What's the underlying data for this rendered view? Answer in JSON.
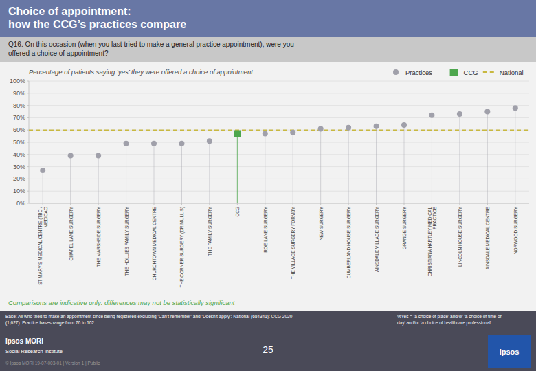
{
  "chart_data": {
    "type": "scatter",
    "title": "Choice of appointment:\nhow the CCG’s practices compare",
    "question": "Q16. On this occasion (when you last tried to make a general practice appointment), were you\noffered a choice of appointment?",
    "subtitle": "Percentage of patients saying ‘yes’ they were offered a choice of appointment",
    "categories": [
      "ST MARY'S MEDICAL CENTRE (TBC /\nMEDICAO",
      "CHAPEL LANE SURGERY",
      "THE MARSHSIDE SURGERY",
      "THE HOLLIES FAMILY SURGERY",
      "CHURCHTOWN MEDICAL CENTRE",
      "THE CORNER SURGERY (DR MULLIS)",
      "THE FAMILY SURGERY",
      "CCG",
      "ROE LANE SURGERY",
      "THE VILLAGE SURGERY FORMBY",
      "NEW SURGERY",
      "CUMBERLAND HOUSE SURGERY",
      "AINSDALE VILLAGE SURGERY",
      "GRANGE SURGERY",
      "CHRISTIANA HARTLEY MEDICAL\nPRACTICE",
      "LINCOLN HOUSE SURGERY",
      "AINSDALE MEDICAL CENTRE",
      "NORWOOD SURGERY"
    ],
    "series": [
      {
        "name": "Practices",
        "color": "#a0a0aa",
        "marker": "circle",
        "values": [
          27,
          39,
          39,
          49,
          49,
          49,
          51,
          null,
          57,
          58,
          61,
          62,
          63,
          64,
          72,
          73,
          75,
          78
        ]
      },
      {
        "name": "CCG",
        "color": "#4da64d",
        "marker": "square",
        "values": [
          null,
          null,
          null,
          null,
          null,
          null,
          null,
          57,
          null,
          null,
          null,
          null,
          null,
          null,
          null,
          null,
          null,
          null
        ]
      }
    ],
    "reference_lines": [
      {
        "name": "National",
        "value": 60,
        "color": "#c8b840",
        "line_style": "dashed"
      }
    ],
    "ylim": [
      0,
      100
    ],
    "yticks": [
      {
        "value": 0,
        "label": "0%"
      },
      {
        "value": 10,
        "label": "10%"
      },
      {
        "value": 20,
        "label": "20%"
      },
      {
        "value": 30,
        "label": "30%"
      },
      {
        "value": 40,
        "label": "40%"
      },
      {
        "value": 50,
        "label": "50%"
      },
      {
        "value": 60,
        "label": "60%"
      },
      {
        "value": 70,
        "label": "70%"
      },
      {
        "value": 80,
        "label": "80%"
      },
      {
        "value": 90,
        "label": "90%"
      },
      {
        "value": 100,
        "label": "100%"
      }
    ],
    "grid": true,
    "legend": "upper right",
    "annotations": [
      {
        "text": "Comparisons are indicative only: differences may not be statistically significant",
        "color": "#4da64d"
      },
      {
        "text": "Base: All who tried to make an appointment since being registered excluding ‘Can’t remember’ and ‘Doesn’t apply’: National (684341): CCG 2020\n(1,627): Practice bases range from 76 to 102"
      },
      {
        "text": "%Yes = ‘a choice of place’ and/or ‘a choice of time or\nday’ and/or ‘a choice of healthcare professional’"
      },
      {
        "text": "Ipsos MORI"
      },
      {
        "text": "Social Research Institute"
      },
      {
        "text": "© Ipsos MORI   19-07-003-01 | Version 1 | Public"
      },
      {
        "text": "25"
      },
      {
        "text": "ipsos"
      }
    ]
  }
}
